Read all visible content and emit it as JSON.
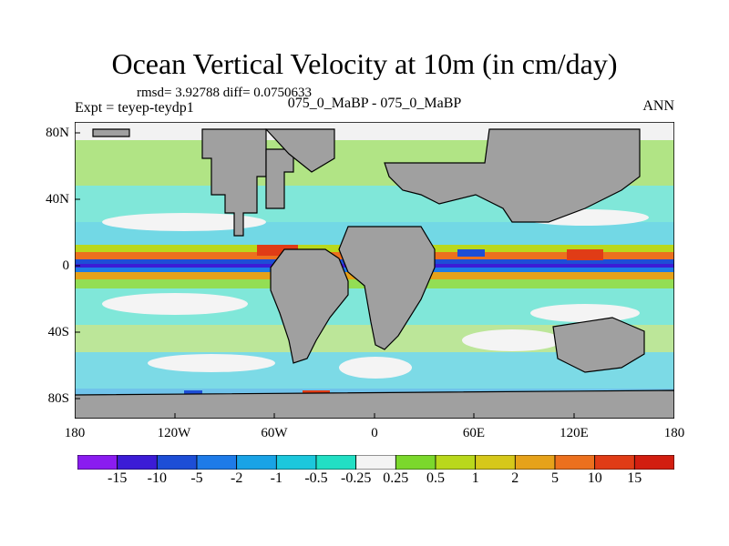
{
  "title": "Ocean Vertical Velocity at 10m (in cm/day)",
  "stats": "rmsd= 3.92788 diff= 0.0750633",
  "expt": "Expt = teyep-teydp1",
  "center_label": "075_0_MaBP - 075_0_MaBP",
  "season": "ANN",
  "lat_labels": [
    "80N",
    "40N",
    "0",
    "40S",
    "80S"
  ],
  "lon_labels": [
    "180",
    "120W",
    "60W",
    "0",
    "60E",
    "120E",
    "180"
  ],
  "colorbar": {
    "labels": [
      "-15",
      "-10",
      "-5",
      "-2",
      "-1",
      "-0.5",
      "-0.25",
      "0.25",
      "0.5",
      "1",
      "2",
      "5",
      "10",
      "15"
    ],
    "colors": [
      "#8a1cf0",
      "#3c1cd6",
      "#1d4ed6",
      "#1e7be8",
      "#19a3e6",
      "#1cc7dc",
      "#22dfc4",
      "#f4f4f4",
      "#7bd82c",
      "#b9d81c",
      "#d6c81a",
      "#e6a21a",
      "#ec701e",
      "#e03c16",
      "#d21e10"
    ]
  },
  "colors": {
    "land": "#a0a0a0",
    "coast": "#000000",
    "background": "#ffffff"
  }
}
